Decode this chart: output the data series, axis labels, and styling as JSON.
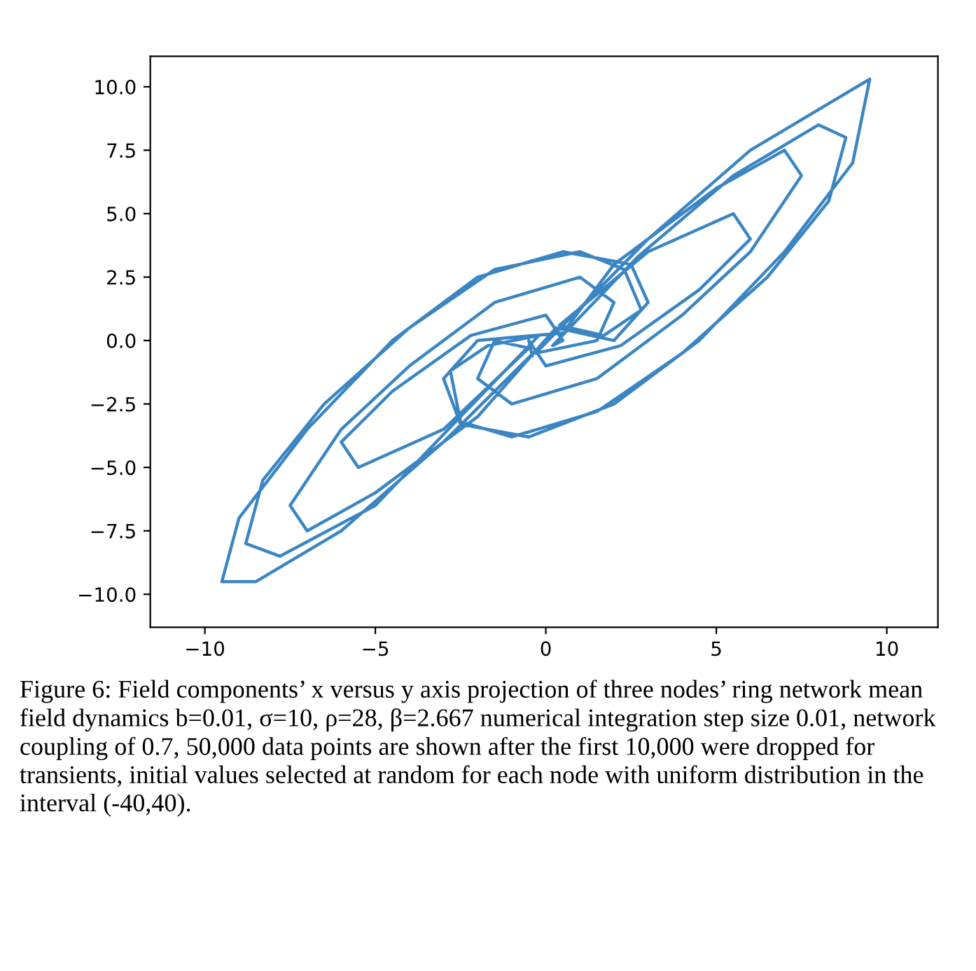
{
  "chart_data": {
    "type": "line",
    "annotations": [
      "Figure 6: Field components’ x versus y axis projection of three nodes’ ring network mean field dynamics b=0.01, σ=10, ρ=28, β=2.667 numerical integration step size 0.01, network coupling of 0.7, 50,000 data points are shown after the first 10,000 were dropped for transients, initial values selected at random for each node with uniform distribution in the interval (-40,40)."
    ],
    "xlim": [
      -11.6,
      11.5
    ],
    "ylim": [
      -11.3,
      11.2
    ],
    "xticks": [
      {
        "value": -10,
        "label": "−10"
      },
      {
        "value": -5,
        "label": "−5"
      },
      0,
      5,
      10
    ],
    "yticks": [
      {
        "value": -10,
        "label": "−10.0"
      },
      {
        "value": -7.5,
        "label": "−7.5"
      },
      {
        "value": -5,
        "label": "−5.0"
      },
      {
        "value": -2.5,
        "label": "−2.5"
      },
      {
        "value": 0,
        "label": "0.0"
      },
      {
        "value": 2.5,
        "label": "2.5"
      },
      {
        "value": 5,
        "label": "5.0"
      },
      {
        "value": 7.5,
        "label": "7.5"
      },
      {
        "value": 10,
        "label": "10.0"
      }
    ],
    "grid": false,
    "marker": "none",
    "line_style": "solid",
    "x": [
      0,
      -3,
      -6,
      -8.5,
      -9.5,
      -9,
      -7,
      -4.5,
      -2,
      0.5,
      2.5,
      3,
      2,
      0.3,
      -2,
      -5,
      -7,
      -7.5,
      -6,
      -4,
      -1.5,
      1,
      2,
      1.5,
      -0.3,
      3,
      6,
      8.5,
      9.5,
      9,
      7,
      4.5,
      2,
      -0.5,
      -2.5,
      -3,
      -2,
      0.5,
      2,
      5,
      7,
      7.5,
      6,
      4,
      1.5,
      -1,
      -2,
      -1.5,
      -0.5,
      -3,
      -5.5,
      -6,
      -4.5,
      -2.2,
      0,
      0.5,
      0.2,
      2.7,
      5.5,
      8,
      8.8,
      8.3,
      6.5,
      4,
      1.5,
      -1,
      -2.5,
      -2.8,
      -1.7,
      -0.2,
      -2.5,
      -5,
      -7.8,
      -8.8,
      -8.3,
      -6.5,
      -4,
      -1.5,
      1,
      2.3,
      2.8,
      1.7,
      0.4,
      3,
      5.5,
      6,
      4.5,
      2.2,
      0,
      -0.5,
      -0.4
    ],
    "series": [
      {
        "color": "#3b86c2",
        "values": [
          0,
          -4,
          -7.5,
          -9.5,
          -9.5,
          -7,
          -3.5,
          0,
          2.5,
          3.5,
          3,
          1.5,
          0,
          0.5,
          -3,
          -6,
          -7.5,
          -6.5,
          -3.5,
          -1,
          1.5,
          2.5,
          1.5,
          0,
          -0.5,
          4,
          7.5,
          9.5,
          10.3,
          7,
          3.5,
          0,
          -2.5,
          -3.8,
          -3.3,
          -1.5,
          0,
          0.3,
          3,
          6,
          7.5,
          6.5,
          3.5,
          1,
          -1.5,
          -2.5,
          -1.5,
          0,
          -0.3,
          -3.5,
          -5,
          -4,
          -2,
          0.2,
          1,
          0,
          -0.2,
          3.3,
          6.5,
          8.5,
          8,
          5.5,
          2.5,
          -0.5,
          -2.8,
          -3.8,
          -3.2,
          -1.2,
          -0.2,
          0.2,
          -3,
          -6.5,
          -8.5,
          -8,
          -5.5,
          -2.5,
          0.5,
          2.8,
          3.5,
          2.8,
          1.2,
          0.2,
          0.6,
          3.5,
          5,
          4,
          2,
          -0.2,
          -1,
          0,
          -0.6
        ]
      }
    ]
  }
}
